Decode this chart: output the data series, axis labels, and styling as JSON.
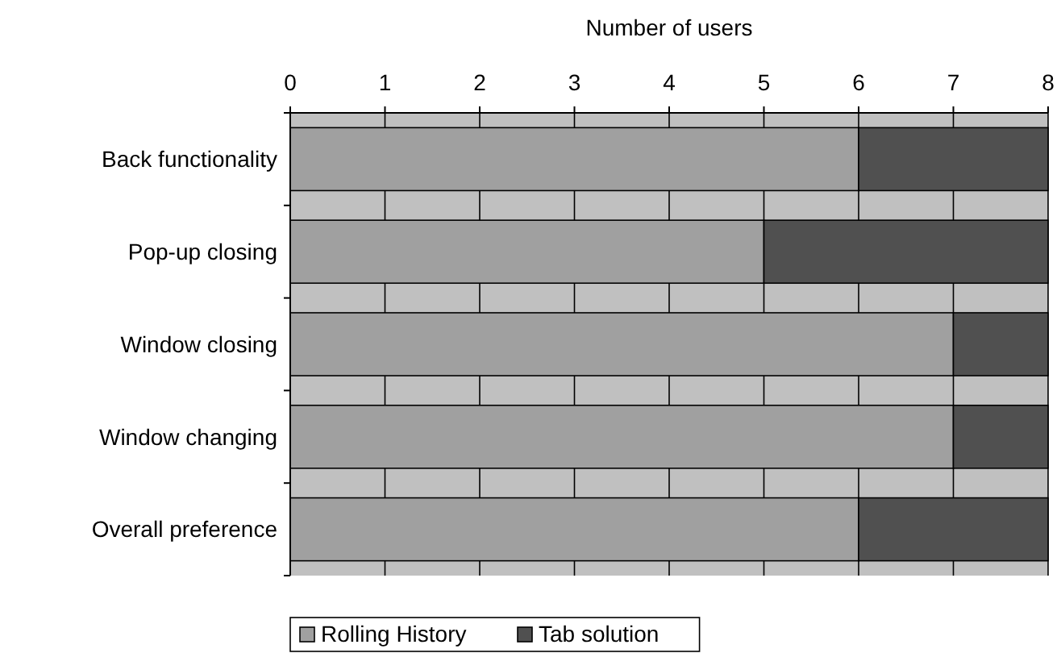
{
  "chart_data": {
    "type": "bar",
    "orientation": "horizontal",
    "stacked": true,
    "xlabel": "Number of users",
    "categories": [
      "Back functionality",
      "Pop-up closing",
      "Window closing",
      "Window changing",
      "Overall preference"
    ],
    "series": [
      {
        "name": "Rolling History",
        "color": "#a0a0a0",
        "values": [
          6,
          5,
          7,
          7,
          6
        ]
      },
      {
        "name": "Tab solution",
        "color": "#505050",
        "values": [
          2,
          3,
          1,
          1,
          2
        ]
      }
    ],
    "xlim": [
      0,
      8
    ],
    "xticks": [
      0,
      1,
      2,
      3,
      4,
      5,
      6,
      7,
      8
    ],
    "grid": "x",
    "legend": "bottom"
  }
}
